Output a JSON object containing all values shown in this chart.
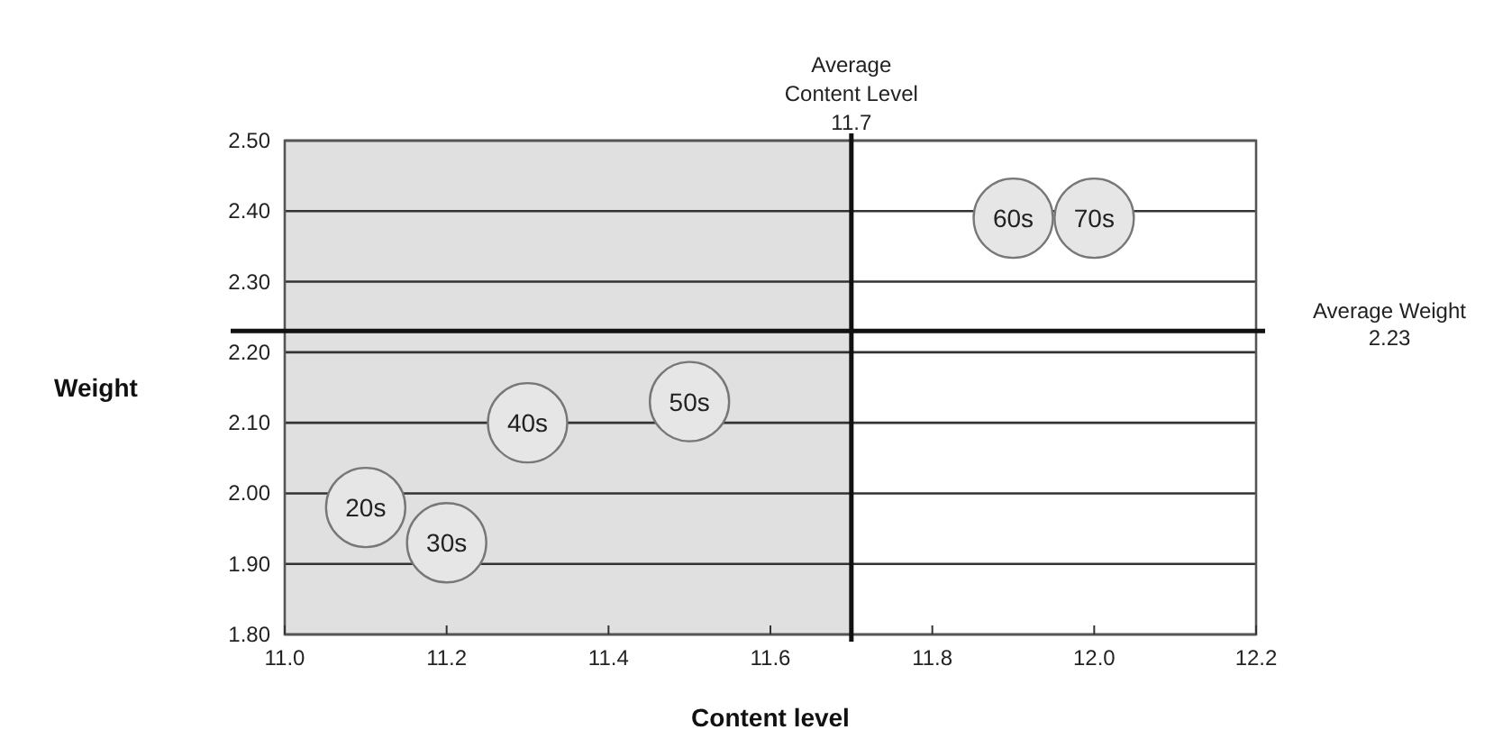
{
  "chart_data": {
    "type": "scatter",
    "xlabel": "Content level",
    "ylabel": "Weight",
    "x": [
      11.1,
      11.2,
      11.3,
      11.5,
      11.9,
      12.0
    ],
    "series": [
      {
        "color": "#e6e6e6",
        "values": [
          1.98,
          1.93,
          2.1,
          2.13,
          2.39,
          2.39
        ]
      }
    ],
    "marker": "circle",
    "annotations": [
      {
        "text": "20s",
        "x": 11.1,
        "y": 1.98
      },
      {
        "text": "30s",
        "x": 11.2,
        "y": 1.93
      },
      {
        "text": "40s",
        "x": 11.3,
        "y": 2.1
      },
      {
        "text": "50s",
        "x": 11.5,
        "y": 2.13
      },
      {
        "text": "60s",
        "x": 11.9,
        "y": 2.39
      },
      {
        "text": "70s",
        "x": 12.0,
        "y": 2.39
      }
    ],
    "xlim": [
      11.0,
      12.2
    ],
    "ylim": [
      1.8,
      2.5
    ],
    "xticks": [
      {
        "value": 11.0,
        "label": "11.0"
      },
      11.2,
      11.4,
      11.6,
      11.8,
      {
        "value": 12.0,
        "label": "12.0"
      },
      12.2
    ],
    "yticks": [
      {
        "value": 1.8,
        "label": "1.80"
      },
      {
        "value": 1.9,
        "label": "1.90"
      },
      {
        "value": 2.0,
        "label": "2.00"
      },
      {
        "value": 2.1,
        "label": "2.10"
      },
      {
        "value": 2.2,
        "label": "2.20"
      },
      {
        "value": 2.3,
        "label": "2.30"
      },
      {
        "value": 2.4,
        "label": "2.40"
      },
      {
        "value": 2.5,
        "label": "2.50"
      }
    ],
    "grid": "y",
    "bands": [
      {
        "axis": "x",
        "from": 11.0,
        "to": 11.7,
        "color": "#e0e0e0"
      }
    ],
    "ref_lines": [
      {
        "axis": "x",
        "value": 11.7,
        "label": "Average Content Level 11.7"
      },
      {
        "axis": "y",
        "value": 2.23,
        "label": "Average Weight 2.23"
      }
    ]
  }
}
